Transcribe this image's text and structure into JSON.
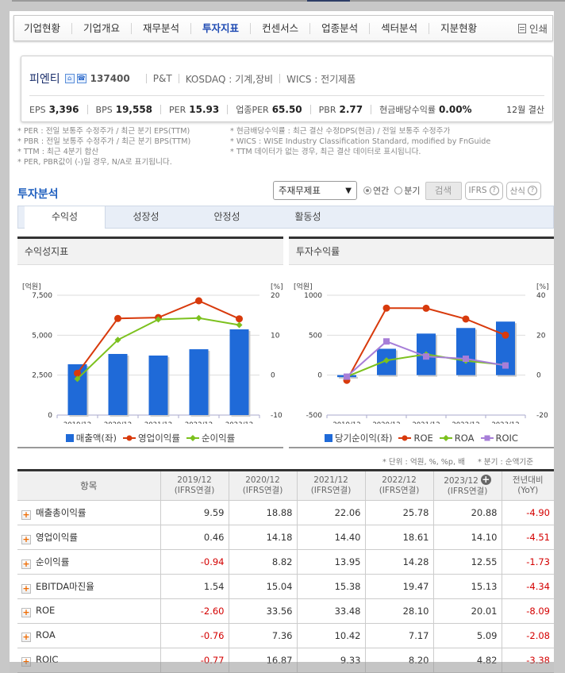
{
  "nav": {
    "items": [
      "기업현황",
      "기업개요",
      "재무분석",
      "투자지표",
      "컨센서스",
      "업종분석",
      "섹터분석",
      "지분현황"
    ],
    "active_index": 3,
    "print_label": "인쇄"
  },
  "company": {
    "name": "피엔티",
    "code": "137400",
    "english_name": "P&T",
    "market": "KOSDAQ : 기계,장비",
    "wics": "WICS : 전기제품",
    "eps_label": "EPS",
    "eps": "3,396",
    "bps_label": "BPS",
    "bps": "19,558",
    "per_label": "PER",
    "per": "15.93",
    "industry_per_label": "업종PER",
    "industry_per": "65.50",
    "pbr_label": "PBR",
    "pbr": "2.77",
    "dividend_label": "현금배당수익률",
    "dividend": "0.00%",
    "settlement": "12월 결산"
  },
  "notes": [
    "* PER : 전일 보통주 수정주가 / 최근 분기 EPS(TTM)",
    "* 현금배당수익률 : 최근 결산 수정DPS(현금) / 전일 보통주 수정주가",
    "* PBR : 전일 보통주 수정주가 / 최근 분기 BPS(TTM)",
    "* WICS : WISE Industry Classification Standard, modified by FnGuide",
    "* TTM : 최근 4분기 합산",
    "* TTM 데이터가 없는 경우, 최근 결산 데이터로 표시됩니다.",
    "* PER, PBR값이 (-)일 경우, N/A로 표기됩니다."
  ],
  "section": {
    "title": "투자분석",
    "select_value": "주재무제표",
    "radio_annual": "연간",
    "radio_quarter": "분기",
    "search_button": "검색",
    "ifrs_button": "IFRS",
    "formula_button": "산식"
  },
  "subtabs": [
    "수익성",
    "성장성",
    "안정성",
    "활동성"
  ],
  "colors": {
    "bar": "#1f6ad8",
    "line_red": "#d83a0c",
    "line_green": "#7cc11e",
    "line_purple": "#a77ed8",
    "negative": "#d40000",
    "accent_blue": "#1f5fbf"
  },
  "chart_data": [
    {
      "type": "bar",
      "title": "수익성지표",
      "ylabel_left": "[억원]",
      "ylabel_right": "[%]",
      "ylim_left": [
        0,
        7500
      ],
      "yticks_left": [
        "0",
        "2,500",
        "5,000",
        "7,500"
      ],
      "ylim_right": [
        -10,
        20
      ],
      "yticks_right": [
        "-10",
        "0",
        "10",
        "20"
      ],
      "categories": [
        "2019/12",
        "2020/12",
        "2021/12",
        "2022/12",
        "2023/12"
      ],
      "series": [
        {
          "name": "매출액(좌)",
          "kind": "bar",
          "axis": "left",
          "values": [
            3180,
            3825,
            3725,
            4120,
            5365
          ]
        },
        {
          "name": "영업이익률",
          "kind": "line",
          "axis": "right",
          "values": [
            0.46,
            14.18,
            14.4,
            18.61,
            14.1
          ]
        },
        {
          "name": "순이익률",
          "kind": "line",
          "axis": "right",
          "values": [
            -0.94,
            8.82,
            13.95,
            14.28,
            12.55
          ]
        }
      ],
      "legend": [
        "매출액(좌)",
        "영업이익률",
        "순이익률"
      ]
    },
    {
      "type": "bar",
      "title": "투자수익률",
      "ylabel_left": "[억원]",
      "ylabel_right": "[%]",
      "ylim_left": [
        -500,
        1000
      ],
      "yticks_left": [
        "-500",
        "0",
        "500",
        "1000"
      ],
      "ylim_right": [
        -20,
        40
      ],
      "yticks_right": [
        "-20",
        "0",
        "20",
        "40"
      ],
      "categories": [
        "2019/12",
        "2020/12",
        "2021/12",
        "2022/12",
        "2023/12"
      ],
      "series": [
        {
          "name": "당기순이익(좌)",
          "kind": "bar",
          "axis": "left",
          "values": [
            -25,
            330,
            520,
            590,
            670
          ]
        },
        {
          "name": "ROE",
          "kind": "line",
          "axis": "right",
          "values": [
            -2.6,
            33.56,
            33.48,
            28.1,
            20.01
          ]
        },
        {
          "name": "ROA",
          "kind": "line",
          "axis": "right",
          "values": [
            -0.76,
            7.36,
            10.42,
            7.17,
            5.09
          ]
        },
        {
          "name": "ROIC",
          "kind": "line",
          "axis": "right",
          "values": [
            -0.77,
            16.87,
            9.33,
            8.2,
            4.82
          ]
        }
      ],
      "legend": [
        "당기순이익(좌)",
        "ROE",
        "ROA",
        "ROIC"
      ]
    }
  ],
  "units": {
    "unit": "* 단위 : 억원, %, %p, 배",
    "quarter": "* 분기 : 순액기준"
  },
  "table": {
    "headers": [
      {
        "line1": "항목",
        "line2": ""
      },
      {
        "line1": "2019/12",
        "line2": "(IFRS연결)"
      },
      {
        "line1": "2020/12",
        "line2": "(IFRS연결)"
      },
      {
        "line1": "2021/12",
        "line2": "(IFRS연결)"
      },
      {
        "line1": "2022/12",
        "line2": "(IFRS연결)"
      },
      {
        "line1": "2023/12",
        "line2": "(IFRS연결)"
      },
      {
        "line1": "전년대비",
        "line2": "(YoY)"
      }
    ],
    "rows": [
      {
        "label": "매출총이익률",
        "values": [
          "9.59",
          "18.88",
          "22.06",
          "25.78",
          "20.88",
          "-4.90"
        ]
      },
      {
        "label": "영업이익률",
        "values": [
          "0.46",
          "14.18",
          "14.40",
          "18.61",
          "14.10",
          "-4.51"
        ]
      },
      {
        "label": "순이익률",
        "values": [
          "-0.94",
          "8.82",
          "13.95",
          "14.28",
          "12.55",
          "-1.73"
        ]
      },
      {
        "label": "EBITDA마진율",
        "values": [
          "1.54",
          "15.04",
          "15.38",
          "19.47",
          "15.13",
          "-4.34"
        ]
      },
      {
        "label": "ROE",
        "values": [
          "-2.60",
          "33.56",
          "33.48",
          "28.10",
          "20.01",
          "-8.09"
        ]
      },
      {
        "label": "ROA",
        "values": [
          "-0.76",
          "7.36",
          "10.42",
          "7.17",
          "5.09",
          "-2.08"
        ]
      },
      {
        "label": "ROIC",
        "values": [
          "-0.77",
          "16.87",
          "9.33",
          "8.20",
          "4.82",
          "-3.38"
        ]
      }
    ]
  }
}
